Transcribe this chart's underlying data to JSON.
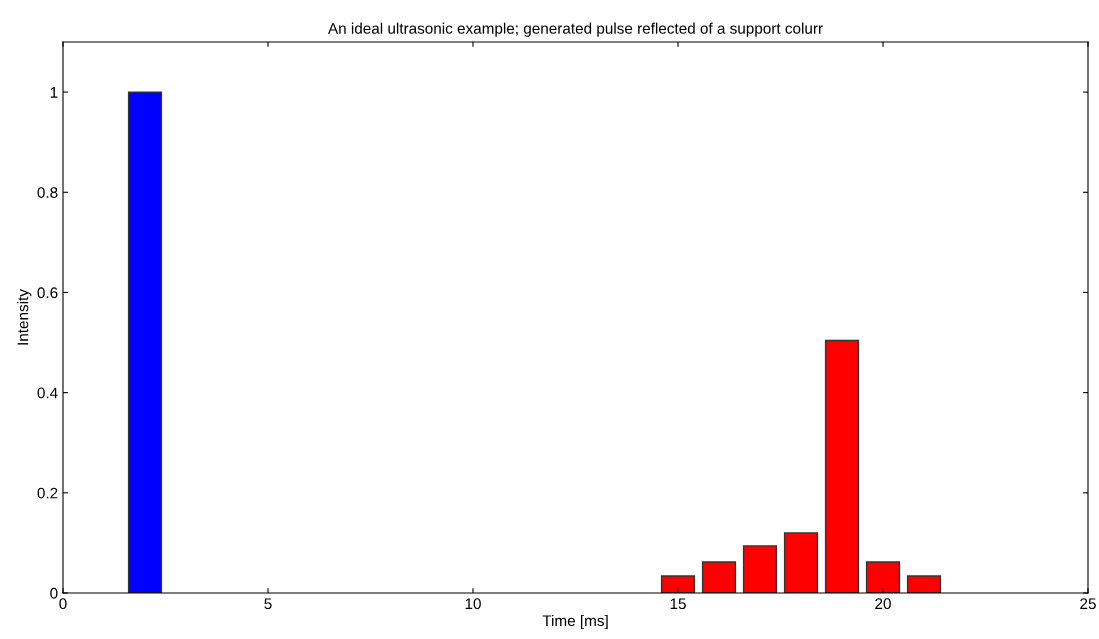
{
  "chart_data": {
    "type": "bar",
    "title": "An ideal ultrasonic example; generated pulse reflected of a support colurr",
    "xlabel": "Time [ms]",
    "ylabel": "Intensity",
    "series": [
      {
        "color": "#0000ff",
        "x": [
          2
        ],
        "values": [
          1.0
        ]
      },
      {
        "color": "#ff0000",
        "x": [
          15,
          16,
          17,
          18,
          19,
          20,
          21
        ],
        "values": [
          0.034,
          0.062,
          0.094,
          0.12,
          0.504,
          0.062,
          0.034
        ]
      }
    ],
    "xlim": [
      0,
      25
    ],
    "xticks": [
      0,
      5,
      10,
      15,
      20,
      25
    ],
    "ylim": [
      0,
      1.1
    ],
    "yticks": [
      0,
      0.2,
      0.4,
      0.6,
      0.8,
      1
    ],
    "grid": false
  }
}
